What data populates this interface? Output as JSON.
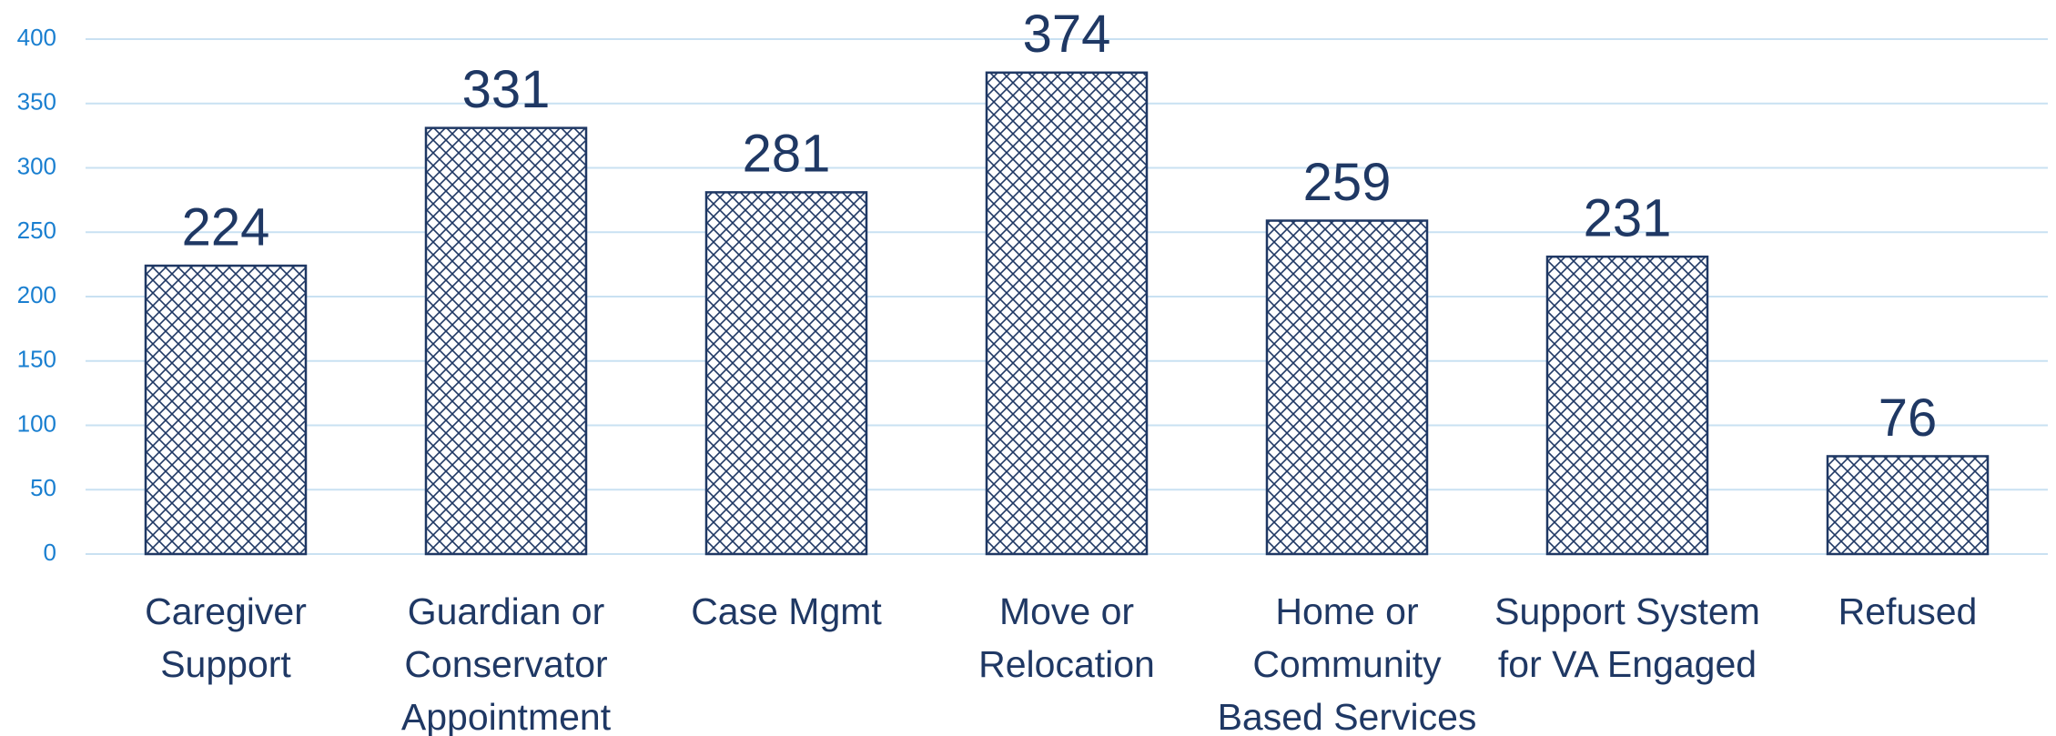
{
  "chart_data": {
    "type": "bar",
    "categories": [
      "Caregiver Support",
      "Guardian or Conservator Appointment",
      "Case Mgmt",
      "Move or Relocation",
      "Home or Community Based Services",
      "Support System for VA Engaged",
      "Refused"
    ],
    "values": [
      224,
      331,
      281,
      374,
      259,
      231,
      76
    ],
    "color": "#1f3864",
    "ylim": [
      0,
      400
    ],
    "yticks": [
      0,
      50,
      100,
      150,
      200,
      250,
      300,
      350,
      400
    ],
    "grid": true
  }
}
